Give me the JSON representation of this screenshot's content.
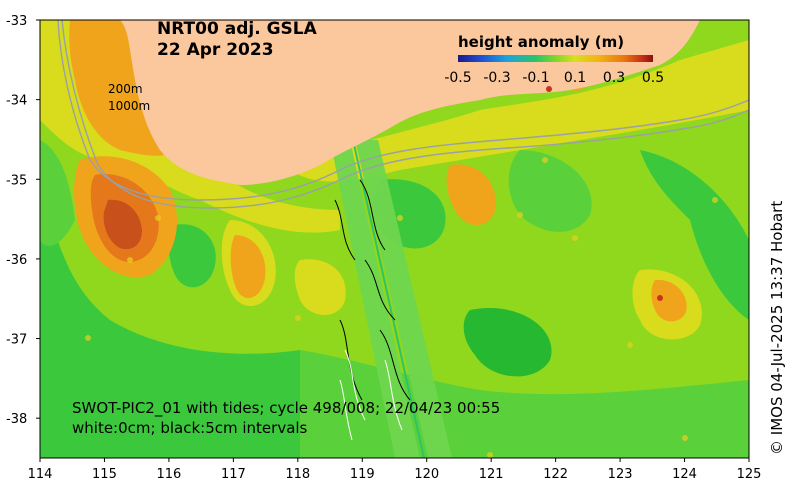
{
  "title": {
    "line1": "NRT00 adj. GSLA",
    "line2": "22 Apr 2023"
  },
  "colorbar": {
    "title": "height anomaly (m)",
    "ticks": [
      "-0.5",
      "-0.3",
      "-0.1",
      "0.1",
      "0.3",
      "0.5"
    ],
    "min": -0.5,
    "max": 0.5,
    "colors": [
      "#1a1a8c",
      "#1f4fd6",
      "#19a4e0",
      "#2bc46a",
      "#7fd62a",
      "#d9e01c",
      "#f0b414",
      "#e8780f",
      "#c83214",
      "#8c1010"
    ]
  },
  "depth_labels": {
    "d200": "200m",
    "d1000": "1000m"
  },
  "swot_note": {
    "line1": "SWOT-PIC2_01 with tides; cycle 498/008; 22/04/23 00:55",
    "line2": "white:0cm; black:5cm intervals"
  },
  "credit": "© IMOS 04-Jul-2025 13:37 Hobart",
  "axes": {
    "lon_ticks": [
      "114",
      "115",
      "116",
      "117",
      "118",
      "119",
      "120",
      "121",
      "122",
      "123",
      "124",
      "125"
    ],
    "lat_ticks": [
      "-33",
      "-34",
      "-35",
      "-36",
      "-37",
      "-38"
    ],
    "lon_range": [
      114,
      125
    ],
    "lat_range": [
      -38.5,
      -33
    ]
  },
  "colors": {
    "land": "#fbc79d",
    "field_base": "#3cc83c",
    "field_mid": "#8fd81e",
    "field_high": "#d8dc1c",
    "field_warm": "#f0a41c",
    "field_hot": "#e4781a",
    "field_peak": "#c8501a",
    "swath": "#6fd64e",
    "isobath": "#9aa0a6"
  }
}
